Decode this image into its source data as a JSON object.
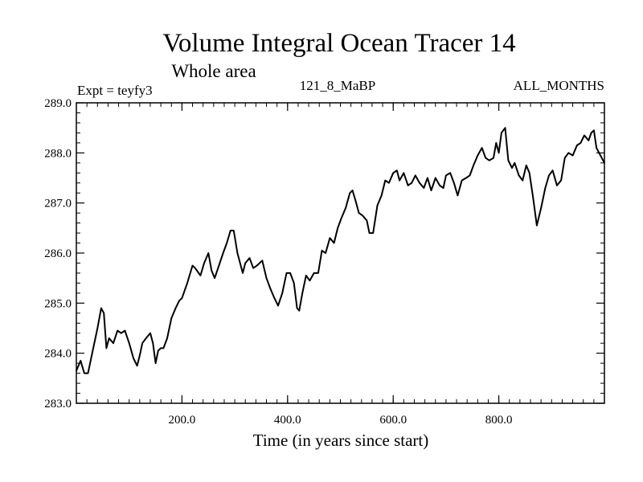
{
  "chart_data": {
    "type": "line",
    "title": "Volume Integral Ocean Tracer 14",
    "subtitle": "Whole area",
    "header_left": "Expt = teyfy3",
    "header_center": "121_8_MaBP",
    "header_right": "ALL_MONTHS",
    "xlabel": "Time (in years since start)",
    "ylabel": "",
    "xlim": [
      0,
      1000
    ],
    "ylim": [
      283.0,
      289.0
    ],
    "x_ticks": [
      200,
      400,
      600,
      800
    ],
    "x_tick_labels": [
      "200.0",
      "400.0",
      "600.0",
      "800.0"
    ],
    "y_ticks": [
      283,
      284,
      285,
      286,
      287,
      288,
      289
    ],
    "y_tick_labels": [
      "283.0",
      "284.0",
      "285.0",
      "286.0",
      "287.0",
      "288.0",
      "289.0"
    ],
    "grid": false,
    "series": [
      {
        "name": "Volume Integral Ocean Tracer 14",
        "color": "#000000",
        "x": [
          0,
          8,
          15,
          22,
          30,
          40,
          47,
          52,
          57,
          62,
          70,
          78,
          85,
          92,
          100,
          108,
          115,
          120,
          125,
          132,
          140,
          145,
          150,
          155,
          160,
          165,
          172,
          180,
          188,
          195,
          200,
          210,
          220,
          225,
          235,
          242,
          250,
          256,
          262,
          270,
          278,
          285,
          292,
          298,
          305,
          315,
          320,
          328,
          335,
          342,
          352,
          360,
          367,
          375,
          382,
          390,
          398,
          405,
          412,
          418,
          422,
          428,
          435,
          442,
          450,
          458,
          465,
          472,
          480,
          488,
          495,
          502,
          510,
          518,
          523,
          530,
          535,
          542,
          550,
          555,
          562,
          570,
          578,
          585,
          592,
          600,
          607,
          612,
          620,
          628,
          635,
          642,
          650,
          658,
          665,
          672,
          680,
          688,
          695,
          700,
          708,
          715,
          722,
          730,
          738,
          745,
          752,
          760,
          768,
          775,
          782,
          790,
          795,
          800,
          805,
          812,
          818,
          825,
          830,
          838,
          845,
          852,
          858,
          865,
          872,
          880,
          888,
          895,
          902,
          910,
          918,
          925,
          932,
          940,
          948,
          955,
          962,
          970,
          975,
          980,
          985,
          990,
          995,
          1000
        ],
        "values": [
          283.65,
          283.85,
          283.6,
          283.6,
          284.0,
          284.5,
          284.9,
          284.8,
          284.1,
          284.3,
          284.2,
          284.45,
          284.4,
          284.45,
          284.2,
          283.9,
          283.75,
          283.95,
          284.2,
          284.3,
          284.4,
          284.2,
          283.8,
          284.05,
          284.1,
          284.1,
          284.3,
          284.7,
          284.9,
          285.05,
          285.1,
          285.4,
          285.75,
          285.7,
          285.55,
          285.8,
          286.0,
          285.65,
          285.5,
          285.75,
          286.0,
          286.2,
          286.45,
          286.45,
          286.0,
          285.6,
          285.8,
          285.9,
          285.7,
          285.75,
          285.85,
          285.5,
          285.3,
          285.1,
          284.95,
          285.2,
          285.6,
          285.6,
          285.4,
          284.9,
          284.85,
          285.2,
          285.55,
          285.45,
          285.6,
          285.6,
          286.05,
          286.0,
          286.3,
          286.2,
          286.5,
          286.7,
          286.9,
          287.2,
          287.25,
          287.0,
          286.8,
          286.75,
          286.65,
          286.4,
          286.4,
          286.95,
          287.15,
          287.45,
          287.4,
          287.6,
          287.65,
          287.45,
          287.6,
          287.35,
          287.4,
          287.55,
          287.4,
          287.3,
          287.5,
          287.25,
          287.5,
          287.35,
          287.3,
          287.55,
          287.6,
          287.4,
          287.15,
          287.45,
          287.5,
          287.55,
          287.75,
          287.95,
          288.1,
          287.9,
          287.85,
          287.9,
          288.2,
          288.0,
          288.4,
          288.5,
          287.85,
          287.7,
          287.8,
          287.55,
          287.45,
          287.75,
          287.6,
          287.1,
          286.55,
          286.9,
          287.3,
          287.55,
          287.65,
          287.35,
          287.45,
          287.9,
          288.0,
          287.95,
          288.15,
          288.2,
          288.35,
          288.25,
          288.4,
          288.45,
          288.1,
          288.0,
          287.9,
          287.8
        ]
      }
    ]
  }
}
